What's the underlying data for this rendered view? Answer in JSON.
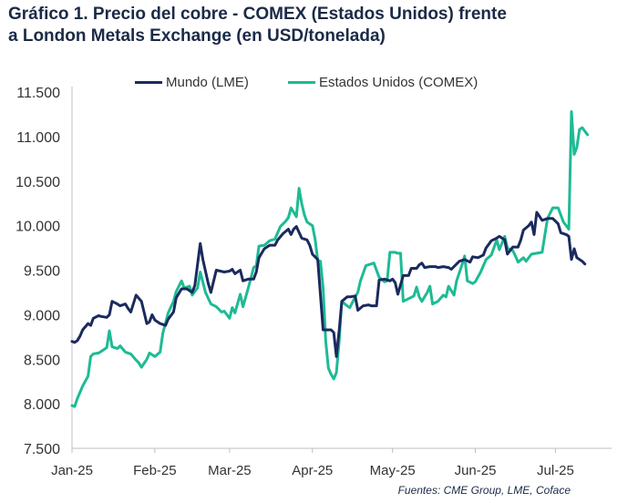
{
  "chart_data": {
    "type": "line",
    "title": "Gráfico 1. Precio del cobre - COMEX (Estados Unidos) frente a London Metals Exchange (en USD/tonelada)",
    "source": "Fuentes: CME Group, LME, Coface",
    "ylim": [
      7500,
      11500
    ],
    "yticks": [
      "7.500",
      "8.000",
      "8.500",
      "9.000",
      "9.500",
      "10.000",
      "10.500",
      "11.000",
      "11.500"
    ],
    "ytick_values": [
      7500,
      8000,
      8500,
      9000,
      9500,
      10000,
      10500,
      11000,
      11500
    ],
    "xlabels": [
      "Jan-25",
      "Feb-25",
      "Mar-25",
      "Apr-25",
      "May-25",
      "Jun-25",
      "Jul-25"
    ],
    "xtick_days": [
      0,
      31,
      59,
      90,
      120,
      151,
      181
    ],
    "xlim_days": [
      0,
      202
    ],
    "grid": false,
    "legend_position": "top",
    "colors": {
      "lme": "#1b2a5e",
      "comex": "#1dbb94"
    },
    "series": [
      {
        "name": "Mundo (LME)",
        "points": [
          [
            0,
            8700
          ],
          [
            1,
            8690
          ],
          [
            2,
            8710
          ],
          [
            3,
            8760
          ],
          [
            4,
            8830
          ],
          [
            6,
            8900
          ],
          [
            7,
            8880
          ],
          [
            8,
            8960
          ],
          [
            10,
            8990
          ],
          [
            11,
            8980
          ],
          [
            13,
            8970
          ],
          [
            14,
            9000
          ],
          [
            15,
            9150
          ],
          [
            17,
            9120
          ],
          [
            18,
            9100
          ],
          [
            20,
            9120
          ],
          [
            21,
            9070
          ],
          [
            22,
            9030
          ],
          [
            24,
            9220
          ],
          [
            26,
            9150
          ],
          [
            28,
            8900
          ],
          [
            29,
            8920
          ],
          [
            30,
            9000
          ],
          [
            31,
            8940
          ],
          [
            33,
            8900
          ],
          [
            35,
            8880
          ],
          [
            36,
            8950
          ],
          [
            38,
            9030
          ],
          [
            39,
            9190
          ],
          [
            41,
            9290
          ],
          [
            43,
            9290
          ],
          [
            45,
            9250
          ],
          [
            46,
            9330
          ],
          [
            48,
            9800
          ],
          [
            49,
            9620
          ],
          [
            51,
            9350
          ],
          [
            52,
            9250
          ],
          [
            54,
            9500
          ],
          [
            57,
            9480
          ],
          [
            59,
            9490
          ],
          [
            60,
            9510
          ],
          [
            61,
            9460
          ],
          [
            63,
            9500
          ],
          [
            64,
            9380
          ],
          [
            66,
            9400
          ],
          [
            68,
            9400
          ],
          [
            69,
            9480
          ],
          [
            70,
            9640
          ],
          [
            72,
            9740
          ],
          [
            74,
            9780
          ],
          [
            76,
            9780
          ],
          [
            77,
            9840
          ],
          [
            79,
            9910
          ],
          [
            81,
            9960
          ],
          [
            82,
            9900
          ],
          [
            83,
            9960
          ],
          [
            84,
            9990
          ],
          [
            86,
            9860
          ],
          [
            88,
            9840
          ],
          [
            89,
            9780
          ],
          [
            90,
            9680
          ],
          [
            92,
            9620
          ],
          [
            94,
            8830
          ],
          [
            97,
            8830
          ],
          [
            98,
            8800
          ],
          [
            99,
            8530
          ],
          [
            100,
            8820
          ],
          [
            101,
            9150
          ],
          [
            103,
            9200
          ],
          [
            104,
            9200
          ],
          [
            106,
            9210
          ],
          [
            107,
            9050
          ],
          [
            109,
            9100
          ],
          [
            111,
            9110
          ],
          [
            112,
            9100
          ],
          [
            114,
            9100
          ],
          [
            115,
            9390
          ],
          [
            117,
            9400
          ],
          [
            119,
            9380
          ],
          [
            120,
            9400
          ],
          [
            121,
            9360
          ],
          [
            122,
            9230
          ],
          [
            124,
            9440
          ],
          [
            126,
            9440
          ],
          [
            127,
            9520
          ],
          [
            129,
            9520
          ],
          [
            130,
            9560
          ],
          [
            131,
            9580
          ],
          [
            132,
            9530
          ],
          [
            134,
            9540
          ],
          [
            136,
            9540
          ],
          [
            137,
            9530
          ],
          [
            139,
            9540
          ],
          [
            141,
            9530
          ],
          [
            142,
            9510
          ],
          [
            145,
            9600
          ],
          [
            147,
            9620
          ],
          [
            149,
            9590
          ],
          [
            150,
            9650
          ],
          [
            152,
            9640
          ],
          [
            154,
            9670
          ],
          [
            155,
            9750
          ],
          [
            157,
            9830
          ],
          [
            159,
            9860
          ],
          [
            160,
            9880
          ],
          [
            162,
            9840
          ],
          [
            163,
            9680
          ],
          [
            165,
            9760
          ],
          [
            167,
            9760
          ],
          [
            168,
            9840
          ],
          [
            169,
            9950
          ],
          [
            171,
            10000
          ],
          [
            172,
            10040
          ],
          [
            173,
            9900
          ],
          [
            174,
            10150
          ],
          [
            176,
            10060
          ],
          [
            178,
            10080
          ],
          [
            180,
            10080
          ],
          [
            181,
            10050
          ],
          [
            182,
            10020
          ],
          [
            183,
            9920
          ],
          [
            185,
            9900
          ],
          [
            186,
            9880
          ],
          [
            187,
            9620
          ],
          [
            188,
            9740
          ],
          [
            189,
            9640
          ],
          [
            191,
            9600
          ],
          [
            192,
            9570
          ]
        ]
      },
      {
        "name": "Estados Unidos (COMEX)",
        "points": [
          [
            0,
            7980
          ],
          [
            1,
            7970
          ],
          [
            2,
            8060
          ],
          [
            4,
            8200
          ],
          [
            6,
            8310
          ],
          [
            7,
            8530
          ],
          [
            8,
            8560
          ],
          [
            10,
            8570
          ],
          [
            11,
            8590
          ],
          [
            13,
            8630
          ],
          [
            14,
            8820
          ],
          [
            15,
            8640
          ],
          [
            17,
            8620
          ],
          [
            18,
            8650
          ],
          [
            20,
            8580
          ],
          [
            22,
            8560
          ],
          [
            24,
            8490
          ],
          [
            25,
            8460
          ],
          [
            26,
            8410
          ],
          [
            28,
            8500
          ],
          [
            29,
            8570
          ],
          [
            31,
            8530
          ],
          [
            33,
            8580
          ],
          [
            34,
            8790
          ],
          [
            36,
            9020
          ],
          [
            38,
            9150
          ],
          [
            39,
            9260
          ],
          [
            41,
            9380
          ],
          [
            42,
            9300
          ],
          [
            44,
            9320
          ],
          [
            45,
            9220
          ],
          [
            47,
            9300
          ],
          [
            48,
            9480
          ],
          [
            50,
            9250
          ],
          [
            52,
            9120
          ],
          [
            54,
            9090
          ],
          [
            56,
            9030
          ],
          [
            57,
            9040
          ],
          [
            59,
            8960
          ],
          [
            60,
            9080
          ],
          [
            61,
            9020
          ],
          [
            63,
            9230
          ],
          [
            64,
            9090
          ],
          [
            66,
            9300
          ],
          [
            68,
            9530
          ],
          [
            69,
            9550
          ],
          [
            70,
            9770
          ],
          [
            72,
            9780
          ],
          [
            74,
            9830
          ],
          [
            76,
            9850
          ],
          [
            78,
            9990
          ],
          [
            80,
            10050
          ],
          [
            81,
            10090
          ],
          [
            82,
            10200
          ],
          [
            84,
            10100
          ],
          [
            85,
            10420
          ],
          [
            86,
            10250
          ],
          [
            87,
            10120
          ],
          [
            88,
            10040
          ],
          [
            89,
            10020
          ],
          [
            90,
            10000
          ],
          [
            91,
            9850
          ],
          [
            92,
            9610
          ],
          [
            93,
            9600
          ],
          [
            94,
            9300
          ],
          [
            95,
            8700
          ],
          [
            96,
            8400
          ],
          [
            97,
            8330
          ],
          [
            98,
            8280
          ],
          [
            99,
            8350
          ],
          [
            100,
            8700
          ],
          [
            101,
            9150
          ],
          [
            103,
            9100
          ],
          [
            104,
            9080
          ],
          [
            106,
            9200
          ],
          [
            107,
            9250
          ],
          [
            108,
            9380
          ],
          [
            110,
            9550
          ],
          [
            111,
            9560
          ],
          [
            112,
            9570
          ],
          [
            113,
            9580
          ],
          [
            115,
            9420
          ],
          [
            117,
            9370
          ],
          [
            118,
            9380
          ],
          [
            119,
            9700
          ],
          [
            121,
            9700
          ],
          [
            122,
            9690
          ],
          [
            123,
            9690
          ],
          [
            124,
            9150
          ],
          [
            126,
            9180
          ],
          [
            128,
            9210
          ],
          [
            129,
            9310
          ],
          [
            130,
            9200
          ],
          [
            131,
            9150
          ],
          [
            133,
            9250
          ],
          [
            134,
            9320
          ],
          [
            135,
            9120
          ],
          [
            137,
            9150
          ],
          [
            139,
            9220
          ],
          [
            140,
            9200
          ],
          [
            141,
            9320
          ],
          [
            143,
            9220
          ],
          [
            144,
            9380
          ],
          [
            146,
            9560
          ],
          [
            147,
            9660
          ],
          [
            148,
            9380
          ],
          [
            150,
            9350
          ],
          [
            151,
            9370
          ],
          [
            153,
            9480
          ],
          [
            155,
            9620
          ],
          [
            157,
            9670
          ],
          [
            159,
            9840
          ],
          [
            160,
            9730
          ],
          [
            162,
            9880
          ],
          [
            163,
            9750
          ],
          [
            165,
            9720
          ],
          [
            166,
            9660
          ],
          [
            167,
            9590
          ],
          [
            169,
            9640
          ],
          [
            170,
            9600
          ],
          [
            172,
            9680
          ],
          [
            174,
            9690
          ],
          [
            176,
            9700
          ],
          [
            178,
            10080
          ],
          [
            180,
            10200
          ],
          [
            182,
            10200
          ],
          [
            184,
            10040
          ],
          [
            186,
            9960
          ],
          [
            187,
            11280
          ],
          [
            188,
            10800
          ],
          [
            189,
            10880
          ],
          [
            190,
            11080
          ],
          [
            191,
            11100
          ],
          [
            192,
            11060
          ],
          [
            193,
            11020
          ]
        ]
      }
    ]
  }
}
